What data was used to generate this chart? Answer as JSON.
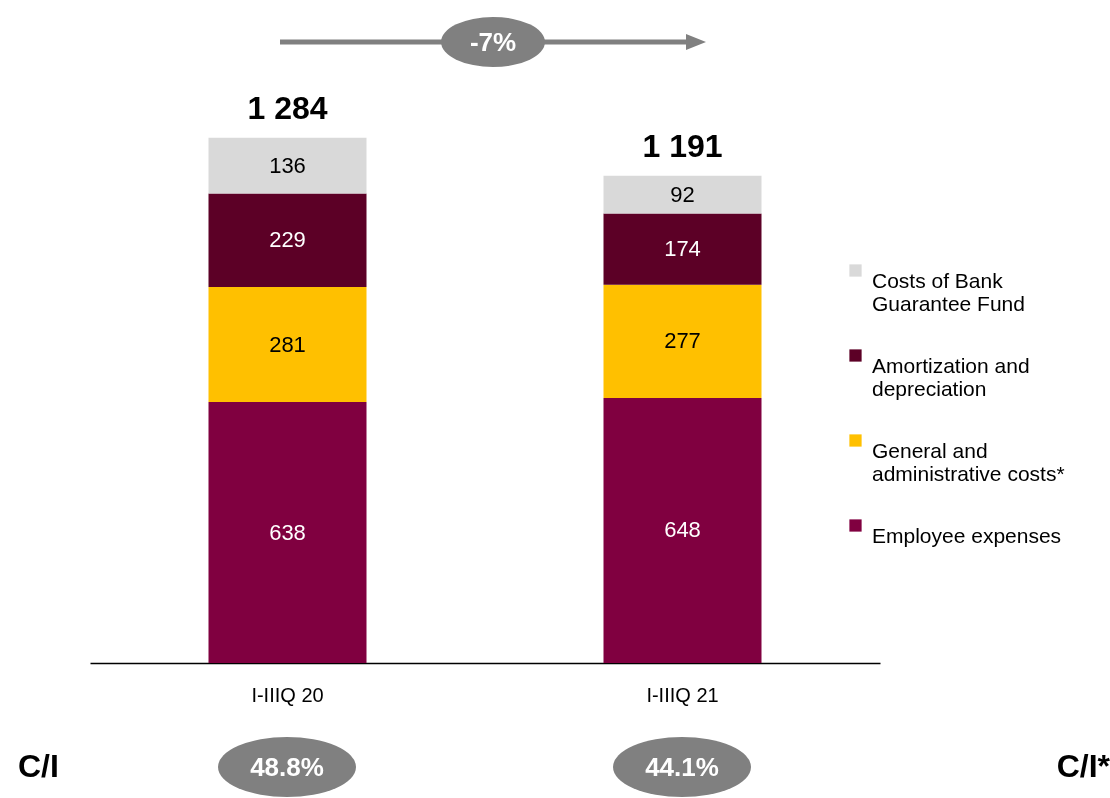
{
  "chart_data": {
    "type": "bar",
    "stacked": true,
    "categories": [
      "I-IIIQ 20",
      "I-IIIQ 21"
    ],
    "series": [
      {
        "name": "Employee expenses",
        "color": "#800040",
        "values": [
          638,
          648
        ]
      },
      {
        "name": "General and administrative costs*",
        "color": "#ffc000",
        "values": [
          281,
          277
        ]
      },
      {
        "name": "Amortization and depreciation",
        "color": "#5c0026",
        "values": [
          229,
          174
        ]
      },
      {
        "name": "Costs of Bank Guarantee Fund",
        "color": "#d9d9d9",
        "values": [
          136,
          92
        ]
      }
    ],
    "data_labels": true,
    "totals": [
      "1 284",
      "1 191"
    ],
    "legend": "right",
    "grid": false,
    "annotations": [
      "-7%",
      "C/I",
      "48.8%",
      "44.1%",
      "C/I*"
    ]
  }
}
